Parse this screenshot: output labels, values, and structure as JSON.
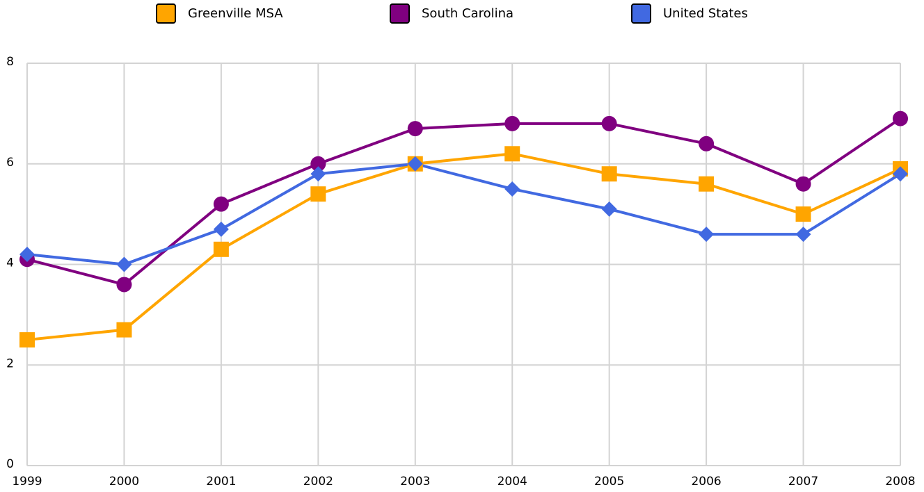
{
  "chart_data": {
    "type": "line",
    "categories": [
      "1999",
      "2000",
      "2001",
      "2002",
      "2003",
      "2004",
      "2005",
      "2006",
      "2007",
      "2008"
    ],
    "series": [
      {
        "name": "Greenville MSA",
        "color": "#ffa500",
        "marker": "square",
        "values": [
          2.5,
          2.7,
          4.3,
          5.4,
          6.0,
          6.2,
          5.8,
          5.6,
          5.0,
          5.9
        ]
      },
      {
        "name": "South Carolina",
        "color": "#800080",
        "marker": "circle",
        "values": [
          4.1,
          3.6,
          5.2,
          6.0,
          6.7,
          6.8,
          6.8,
          6.4,
          5.6,
          6.9
        ]
      },
      {
        "name": "United States",
        "color": "#4169e1",
        "marker": "diamond",
        "values": [
          4.2,
          4.0,
          4.7,
          5.8,
          6.0,
          5.5,
          5.1,
          4.6,
          4.6,
          5.8
        ]
      }
    ],
    "ylim": [
      0,
      8
    ],
    "yticks": [
      0,
      2,
      4,
      6,
      8
    ],
    "grid": true,
    "legend": "top"
  }
}
